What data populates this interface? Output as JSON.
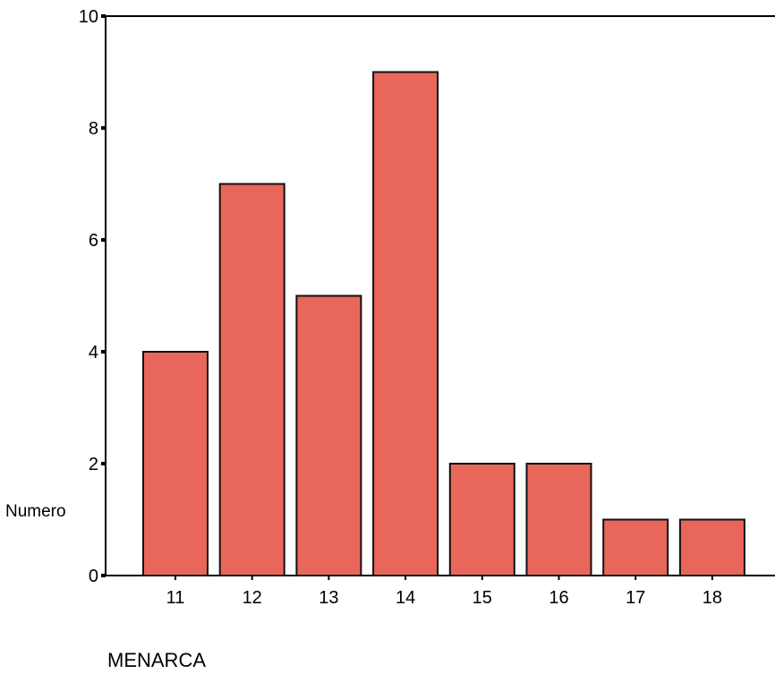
{
  "chart_data": {
    "type": "bar",
    "title": "",
    "xlabel": "MENARCA",
    "ylabel": "Numero",
    "categories": [
      "11",
      "12",
      "13",
      "14",
      "15",
      "16",
      "17",
      "18"
    ],
    "values": [
      4,
      7,
      5,
      9,
      2,
      2,
      1,
      1
    ],
    "ylim": [
      0,
      10
    ],
    "yticks": [
      "0",
      "2",
      "4",
      "6",
      "8",
      "10"
    ],
    "grid": false,
    "legend": "none",
    "colors": {
      "bar_fill": "#e8675a",
      "bar_edge": "#111111",
      "axis": "#000000"
    }
  }
}
